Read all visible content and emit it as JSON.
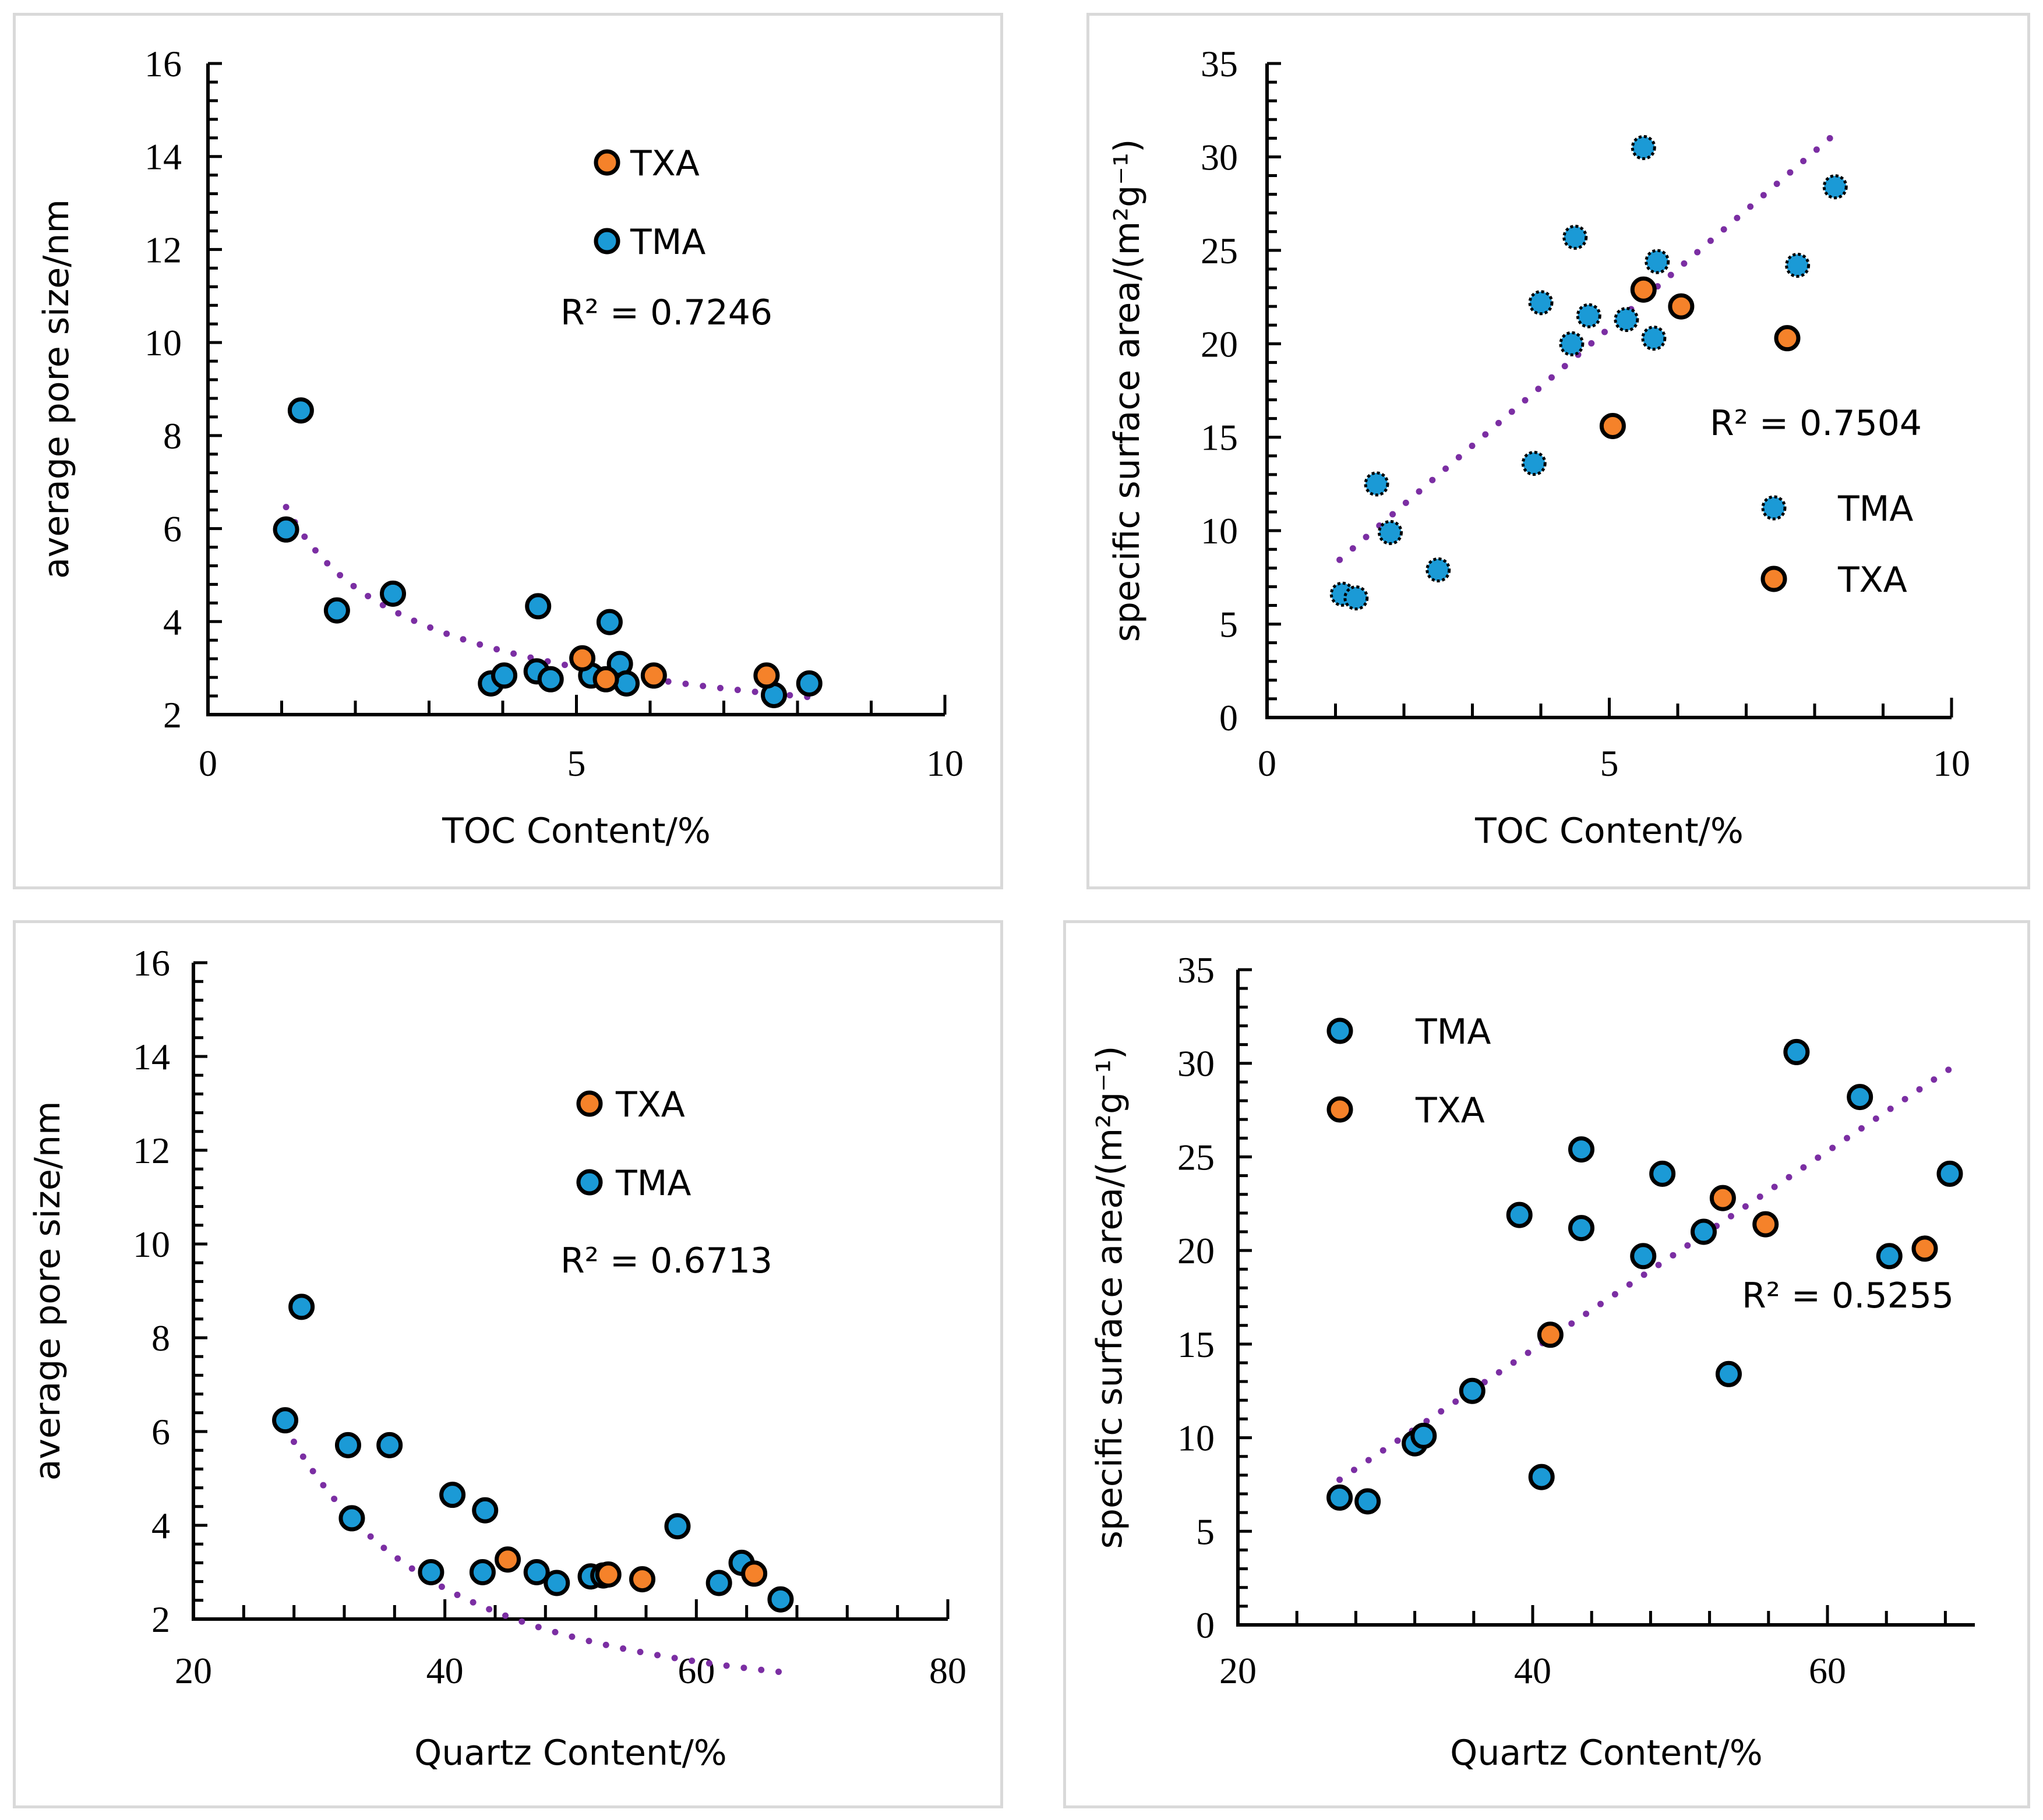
{
  "colors": {
    "TXA": "#f5822a",
    "TMA": "#1b9ad6",
    "trendline": "#7b2ea3",
    "marker_edge": "#000000",
    "panel_border": "#d9d9d9"
  },
  "chart_data": [
    {
      "id": "toc-pore",
      "type": "scatter",
      "title": "",
      "xlabel": "TOC Content/%",
      "ylabel": "average pore size/nm",
      "xlim": [
        0,
        10
      ],
      "ylim": [
        2,
        16
      ],
      "xticks": [
        0,
        5,
        10
      ],
      "yticks": [
        2,
        4,
        6,
        8,
        10,
        12,
        14,
        16
      ],
      "x_minor_step": 1,
      "y_minor_step": 0.4,
      "grid": false,
      "legend": {
        "placement": "upper-center",
        "entries": [
          "TXA",
          "TMA"
        ]
      },
      "r2_label": "R² = 0.7246",
      "trendline": {
        "type": "power",
        "x_range": [
          1.06,
          8.16
        ],
        "a": 6.65,
        "b": -0.49
      },
      "series": [
        {
          "name": "TMA",
          "points": [
            [
              1.26,
              8.54
            ],
            [
              1.06,
              5.98
            ],
            [
              1.75,
              4.24
            ],
            [
              2.51,
              4.6
            ],
            [
              4.48,
              4.33
            ],
            [
              5.45,
              3.99
            ],
            [
              3.84,
              2.67
            ],
            [
              4.02,
              2.84
            ],
            [
              4.46,
              2.93
            ],
            [
              4.65,
              2.76
            ],
            [
              5.2,
              2.84
            ],
            [
              5.59,
              3.09
            ],
            [
              5.68,
              2.67
            ],
            [
              7.68,
              2.42
            ],
            [
              8.16,
              2.67
            ]
          ]
        },
        {
          "name": "TXA",
          "points": [
            [
              5.08,
              3.21
            ],
            [
              5.4,
              2.76
            ],
            [
              6.05,
              2.84
            ],
            [
              7.58,
              2.84
            ]
          ]
        }
      ]
    },
    {
      "id": "toc-ssa",
      "type": "scatter",
      "title": "",
      "xlabel": "TOC Content/%",
      "ylabel": "specific surface area/(m²g⁻¹)",
      "xlim": [
        0,
        10
      ],
      "ylim": [
        0,
        35
      ],
      "xticks": [
        0,
        5,
        10
      ],
      "yticks": [
        0,
        5,
        10,
        15,
        20,
        25,
        30,
        35
      ],
      "x_minor_step": 1,
      "y_minor_step": 1,
      "grid": false,
      "legend": {
        "placement": "lower-right",
        "entries": [
          "TMA",
          "TXA"
        ]
      },
      "r2_label": "R² = 0.7504",
      "trendline": {
        "type": "linear",
        "x_range": [
          1.06,
          8.3
        ],
        "slope": 3.15,
        "intercept": 5.1
      },
      "series": [
        {
          "name": "TMA",
          "points": [
            [
              1.1,
              6.6
            ],
            [
              1.3,
              6.4
            ],
            [
              1.6,
              12.5
            ],
            [
              1.8,
              9.9
            ],
            [
              2.5,
              7.9
            ],
            [
              3.9,
              13.6
            ],
            [
              4.0,
              22.2
            ],
            [
              4.45,
              20.0
            ],
            [
              4.5,
              25.7
            ],
            [
              4.7,
              21.5
            ],
            [
              5.25,
              21.3
            ],
            [
              5.5,
              30.5
            ],
            [
              5.65,
              20.3
            ],
            [
              5.7,
              24.4
            ],
            [
              7.75,
              24.2
            ],
            [
              8.3,
              28.4
            ]
          ]
        },
        {
          "name": "TXA",
          "points": [
            [
              5.05,
              15.6
            ],
            [
              5.5,
              22.9
            ],
            [
              6.05,
              22.0
            ],
            [
              7.6,
              20.3
            ]
          ]
        }
      ]
    },
    {
      "id": "quartz-pore",
      "type": "scatter",
      "title": "",
      "xlabel": "Quartz Content/%",
      "ylabel": "average pore size/nm",
      "xlim": [
        20,
        80
      ],
      "ylim": [
        2,
        16
      ],
      "xticks": [
        20,
        40,
        60,
        80
      ],
      "yticks": [
        2,
        4,
        6,
        8,
        10,
        12,
        14,
        16
      ],
      "x_minor_step": 4,
      "y_minor_step": 0.4,
      "grid": false,
      "legend": {
        "placement": "upper-center",
        "entries": [
          "TXA",
          "TMA"
        ]
      },
      "r2_label": "R² = 0.6713",
      "trendline": {
        "type": "power",
        "x_range": [
          27.3,
          66.8
        ],
        "a": 8250,
        "b": -2.18
      },
      "series": [
        {
          "name": "TMA",
          "points": [
            [
              28.6,
              8.66
            ],
            [
              27.3,
              6.24
            ],
            [
              32.3,
              5.71
            ],
            [
              35.6,
              5.71
            ],
            [
              32.6,
              4.15
            ],
            [
              40.6,
              4.65
            ],
            [
              43.2,
              4.32
            ],
            [
              58.5,
              3.98
            ],
            [
              38.9,
              3.0
            ],
            [
              43.0,
              3.0
            ],
            [
              47.3,
              3.0
            ],
            [
              48.9,
              2.77
            ],
            [
              51.6,
              2.91
            ],
            [
              52.6,
              2.93
            ],
            [
              61.8,
              2.77
            ],
            [
              63.6,
              3.2
            ],
            [
              66.7,
              2.42
            ]
          ]
        },
        {
          "name": "TXA",
          "points": [
            [
              45.0,
              3.27
            ],
            [
              53.0,
              2.95
            ],
            [
              55.7,
              2.85
            ],
            [
              64.6,
              2.97
            ]
          ]
        }
      ]
    },
    {
      "id": "quartz-ssa",
      "type": "scatter",
      "title": "",
      "xlabel": "Quartz Content/%",
      "ylabel": "specific surface area/(m²g⁻¹)",
      "xlim": [
        20,
        70
      ],
      "ylim": [
        0,
        35
      ],
      "xticks": [
        20,
        40,
        60
      ],
      "yticks": [
        0,
        5,
        10,
        15,
        20,
        25,
        30,
        35
      ],
      "x_minor_step": 4,
      "y_minor_step": 1,
      "grid": false,
      "legend": {
        "placement": "upper-left",
        "entries": [
          "TMA",
          "TXA"
        ]
      },
      "r2_label": "R² = 0.5255",
      "trendline": {
        "type": "linear",
        "x_range": [
          26.9,
          68.3
        ],
        "slope": 0.53,
        "intercept": -6.5
      },
      "series": [
        {
          "name": "TMA",
          "points": [
            [
              26.9,
              6.8
            ],
            [
              28.8,
              6.6
            ],
            [
              32.0,
              9.7
            ],
            [
              32.6,
              10.1
            ],
            [
              35.9,
              12.5
            ],
            [
              39.1,
              21.9
            ],
            [
              40.6,
              7.9
            ],
            [
              43.3,
              25.4
            ],
            [
              43.3,
              21.2
            ],
            [
              47.5,
              19.7
            ],
            [
              48.8,
              24.1
            ],
            [
              51.6,
              21.0
            ],
            [
              53.3,
              13.4
            ],
            [
              57.9,
              30.6
            ],
            [
              62.2,
              28.2
            ],
            [
              64.2,
              19.7
            ],
            [
              68.3,
              24.1
            ]
          ]
        },
        {
          "name": "TXA",
          "points": [
            [
              41.2,
              15.5
            ],
            [
              52.9,
              22.8
            ],
            [
              55.8,
              21.4
            ],
            [
              66.6,
              20.1
            ]
          ]
        }
      ]
    }
  ]
}
